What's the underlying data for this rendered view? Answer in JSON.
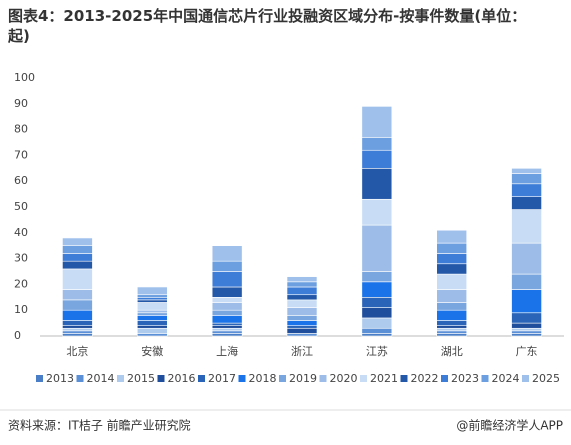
{
  "chart_data": {
    "type": "stacked-bar",
    "title": "图表4：2013-2025年中国通信芯片行业投融资区域分布-按事件数量(单位：起)",
    "categories": [
      "北京",
      "安徽",
      "上海",
      "浙江",
      "江苏",
      "湖北",
      "广东"
    ],
    "series": [
      {
        "name": "2013",
        "color": "#4a7fc8",
        "values": [
          1,
          0,
          1,
          0,
          1,
          1,
          1
        ]
      },
      {
        "name": "2014",
        "color": "#5b8fd6",
        "values": [
          1,
          1,
          1,
          1,
          2,
          1,
          1
        ]
      },
      {
        "name": "2015",
        "color": "#aecbee",
        "values": [
          1,
          2,
          1,
          0,
          4,
          1,
          1
        ]
      },
      {
        "name": "2016",
        "color": "#1f4e9c",
        "values": [
          1,
          1,
          1,
          2,
          4,
          1,
          2
        ]
      },
      {
        "name": "2017",
        "color": "#2a64b8",
        "values": [
          2,
          2,
          1,
          1,
          4,
          2,
          4
        ]
      },
      {
        "name": "2018",
        "color": "#1a73e8",
        "values": [
          4,
          2,
          3,
          2,
          6,
          4,
          9
        ]
      },
      {
        "name": "2019",
        "color": "#7aa6e0",
        "values": [
          4,
          1,
          2,
          2,
          4,
          3,
          6
        ]
      },
      {
        "name": "2020",
        "color": "#9dbde8",
        "values": [
          4,
          1,
          3,
          3,
          18,
          5,
          12
        ]
      },
      {
        "name": "2021",
        "color": "#c8ddf5",
        "values": [
          8,
          3,
          2,
          3,
          10,
          6,
          13
        ]
      },
      {
        "name": "2022",
        "color": "#2358a8",
        "values": [
          3,
          1,
          4,
          2,
          12,
          4,
          5
        ]
      },
      {
        "name": "2023",
        "color": "#3d7dd8",
        "values": [
          3,
          1,
          6,
          3,
          7,
          4,
          5
        ]
      },
      {
        "name": "2024",
        "color": "#6b9fe0",
        "values": [
          3,
          1,
          4,
          2,
          5,
          4,
          4
        ]
      },
      {
        "name": "2025",
        "color": "#a0c0ec",
        "values": [
          3,
          3,
          6,
          2,
          12,
          5,
          2
        ]
      }
    ],
    "ylim": [
      0,
      100
    ],
    "yticks": [
      0,
      10,
      20,
      30,
      40,
      50,
      60,
      70,
      80,
      90,
      100
    ],
    "grid": false,
    "source": "资料来源：IT桔子 前瞻产业研究院",
    "credit": "@前瞻经济学人APP"
  }
}
